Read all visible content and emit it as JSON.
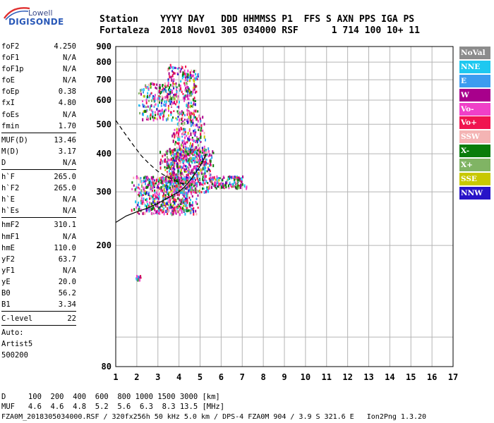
{
  "logo": {
    "top_text": "Lowell",
    "main_text": "DIGISONDE"
  },
  "header": {
    "line1": "Station    YYYY DAY   DDD HHMMSS P1  FFS S AXN PPS IGA PS",
    "line2": "Fortaleza  2018 Nov01 305 034000 RSF      1 714 100 10+ 11"
  },
  "params": {
    "group1": [
      {
        "label": "foF2",
        "value": "4.250"
      },
      {
        "label": "foF1",
        "value": "N/A"
      },
      {
        "label": "foF1p",
        "value": "N/A"
      },
      {
        "label": "foE",
        "value": "N/A"
      },
      {
        "label": "foEp",
        "value": "0.38"
      },
      {
        "label": "fxI",
        "value": "4.80"
      },
      {
        "label": "foEs",
        "value": "N/A"
      },
      {
        "label": "fmin",
        "value": "1.70"
      }
    ],
    "group2": [
      {
        "label": "MUF(D)",
        "value": "13.46"
      },
      {
        "label": "M(D)",
        "value": "3.17"
      },
      {
        "label": "D",
        "value": "N/A"
      }
    ],
    "group3": [
      {
        "label": "h`F",
        "value": "265.0"
      },
      {
        "label": "h`F2",
        "value": "265.0"
      },
      {
        "label": "h`E",
        "value": "N/A"
      },
      {
        "label": "h`Es",
        "value": "N/A"
      }
    ],
    "group4": [
      {
        "label": "hmF2",
        "value": "310.1"
      },
      {
        "label": "hmF1",
        "value": "N/A"
      },
      {
        "label": "hmE",
        "value": "110.0"
      },
      {
        "label": "yF2",
        "value": "63.7"
      },
      {
        "label": "yF1",
        "value": "N/A"
      },
      {
        "label": "yE",
        "value": "20.0"
      },
      {
        "label": "B0",
        "value": "56.2"
      },
      {
        "label": "B1",
        "value": "3.34"
      }
    ],
    "group5": [
      {
        "label": "C-level",
        "value": "22"
      }
    ],
    "auto_lines": [
      "Auto:",
      "Artist5",
      "500200"
    ]
  },
  "footer": {
    "d_line": "D     100  200  400  600  800 1000 1500 3000 [km]",
    "muf_line": "MUF   4.6  4.6  4.8  5.2  5.6  6.3  8.3 13.5 [MHz]",
    "info_line": "FZA0M_2018305034000.RSF / 320fx256h 50 kHz 5.0 km / DPS-4 FZA0M 904 / 3.9 S 321.6 E   Ion2Png 1.3.20"
  },
  "legend": [
    {
      "label": "NoVal",
      "color": "#8c8c8c"
    },
    {
      "label": "NNE",
      "color": "#1ec8f0"
    },
    {
      "label": "E",
      "color": "#3c9cf0"
    },
    {
      "label": "W",
      "color": "#a8008c"
    },
    {
      "label": "Vo-",
      "color": "#f040c8"
    },
    {
      "label": "Vo+",
      "color": "#f01450"
    },
    {
      "label": "SSW",
      "color": "#f4b4b4"
    },
    {
      "label": "X-",
      "color": "#0a7c0a"
    },
    {
      "label": "X+",
      "color": "#80b464"
    },
    {
      "label": "SSE",
      "color": "#c8c800"
    },
    {
      "label": "NNW",
      "color": "#2814c8"
    }
  ],
  "chart_data": {
    "type": "scatter",
    "title": "",
    "xlabel": "",
    "ylabel": "",
    "xlim": [
      1,
      17
    ],
    "ylim": [
      80,
      900
    ],
    "y_log_scale": true,
    "grid": true,
    "x_ticks": [
      1,
      2,
      3,
      4,
      5,
      6,
      7,
      8,
      9,
      10,
      11,
      12,
      13,
      14,
      15,
      16,
      17
    ],
    "y_ticks": [
      80,
      100,
      200,
      300,
      400,
      500,
      600,
      700,
      800,
      900
    ],
    "x_tick_labels": [
      "1",
      "2",
      "3",
      "4",
      "5",
      "6",
      "7",
      "8",
      "9",
      "10",
      "11",
      "12",
      "13",
      "14",
      "15",
      "16",
      "17"
    ],
    "y_tick_labels": [
      "80",
      "",
      "200",
      "300",
      "400",
      "500",
      "600",
      "700",
      "800",
      "900"
    ],
    "profile_solid": {
      "x": [
        1.0,
        1.5,
        2.0,
        2.5,
        3.0,
        3.5,
        4.0,
        4.3,
        4.6,
        4.9,
        5.1,
        5.3
      ],
      "y": [
        238,
        250,
        258,
        265,
        275,
        287,
        300,
        313,
        332,
        355,
        375,
        400
      ]
    },
    "profile_dashed": {
      "x": [
        1.0,
        1.4,
        1.8,
        2.2,
        2.6,
        3.0,
        3.3,
        3.6,
        3.9,
        4.1,
        4.25
      ],
      "y": [
        515,
        470,
        430,
        395,
        370,
        350,
        340,
        332,
        325,
        320,
        318
      ]
    },
    "clusters": [
      {
        "name": "F-trace-low",
        "x": [
          1.7,
          5.0
        ],
        "y": [
          255,
          340
        ],
        "count": 650
      },
      {
        "name": "F-trace-mid",
        "x": [
          3.0,
          5.7
        ],
        "y": [
          300,
          420
        ],
        "count": 600
      },
      {
        "name": "F-spread-up",
        "x": [
          3.6,
          5.3
        ],
        "y": [
          380,
          560
        ],
        "count": 260
      },
      {
        "name": "F-high-tail",
        "x": [
          4.1,
          4.9
        ],
        "y": [
          540,
          760
        ],
        "count": 110
      },
      {
        "name": "F-right-ext",
        "x": [
          5.2,
          7.2
        ],
        "y": [
          310,
          340
        ],
        "count": 140
      },
      {
        "name": "F2-echo",
        "x": [
          2.0,
          4.1
        ],
        "y": [
          520,
          690
        ],
        "count": 240
      },
      {
        "name": "F2-echo-top",
        "x": [
          3.2,
          4.5
        ],
        "y": [
          620,
          790
        ],
        "count": 70
      },
      {
        "name": "Es-low",
        "x": [
          1.9,
          2.2
        ],
        "y": [
          155,
          160
        ],
        "count": 14
      }
    ]
  }
}
